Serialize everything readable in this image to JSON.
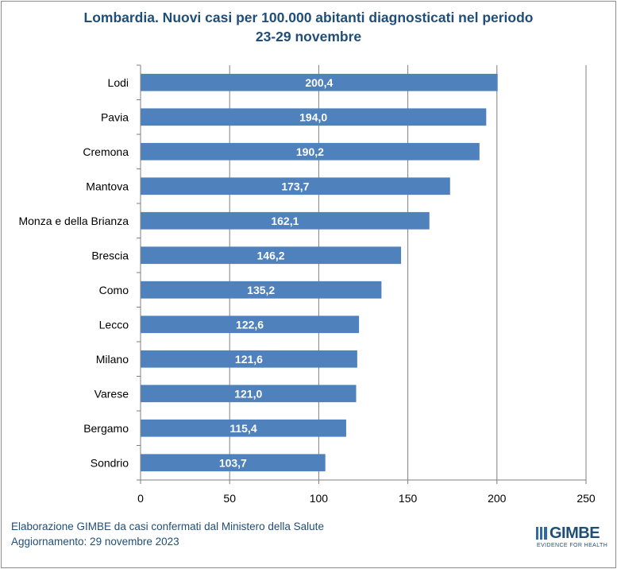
{
  "chart_data": {
    "type": "bar",
    "orientation": "horizontal",
    "title_line1": "Lombardia. Nuovi casi per 100.000 abitanti diagnosticati nel periodo",
    "title_line2": "23-29 novembre",
    "categories": [
      "Lodi",
      "Pavia",
      "Cremona",
      "Mantova",
      "Monza e della Brianza",
      "Brescia",
      "Como",
      "Lecco",
      "Milano",
      "Varese",
      "Bergamo",
      "Sondrio"
    ],
    "values": [
      200.4,
      194.0,
      190.2,
      173.7,
      162.1,
      146.2,
      135.2,
      122.6,
      121.6,
      121.0,
      115.4,
      103.7
    ],
    "value_labels": [
      "200,4",
      "194,0",
      "190,2",
      "173,7",
      "162,1",
      "146,2",
      "135,2",
      "122,6",
      "121,6",
      "121,0",
      "115,4",
      "103,7"
    ],
    "xlim": [
      0,
      250
    ],
    "xticks": [
      0,
      50,
      100,
      150,
      200,
      250
    ],
    "grid": true,
    "bar_color": "#4f81bd",
    "grid_color": "#7f7f7f"
  },
  "footer": {
    "line1": "Elaborazione GIMBE da casi confermati dal Ministero della Salute",
    "line2": "Aggiornamento: 29 novembre 2023"
  },
  "logo": {
    "name": "GIMBE",
    "tagline": "EVIDENCE FOR HEALTH"
  }
}
